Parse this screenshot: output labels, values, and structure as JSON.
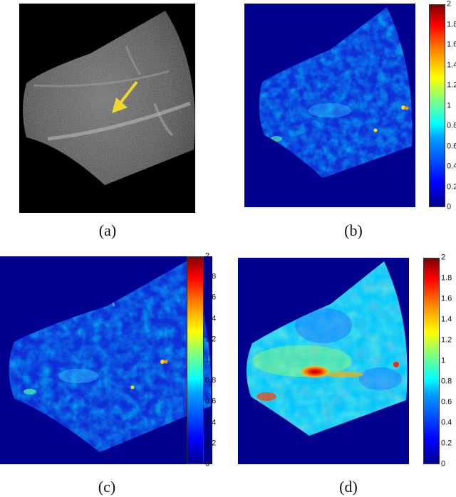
{
  "panels": [
    {
      "id": "a",
      "caption": "(a)"
    },
    {
      "id": "b",
      "caption": "(b)"
    },
    {
      "id": "c",
      "caption": "(c)"
    },
    {
      "id": "d",
      "caption": "(d)"
    }
  ],
  "colorbar": {
    "colormap": "jet",
    "range": [
      0,
      2
    ],
    "ticks_bc": [
      "2",
      "1.8",
      "1.6",
      "1.4",
      "1.2",
      "1",
      "0.8",
      "0.6",
      "0.4",
      "0.2",
      "0"
    ],
    "ticks_d": [
      "2",
      "1.8",
      "1.6",
      "1.4",
      "1.2",
      "1",
      "0.8",
      "0.6",
      "0.4",
      "0.2",
      "0"
    ]
  },
  "colors": {
    "background_blue": "#00008f",
    "arrow_yellow": "#f2d52a"
  }
}
